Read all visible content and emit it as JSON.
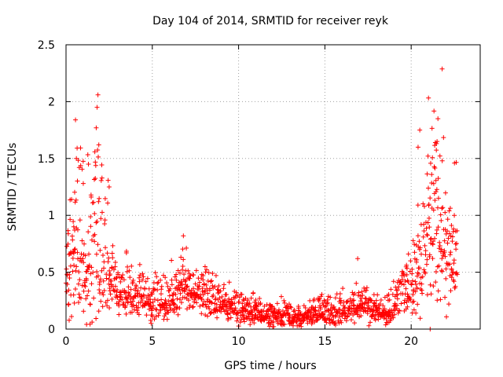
{
  "chart_data": {
    "type": "scatter",
    "title": "Day 104 of 2014, SRMTID for receiver reyk",
    "xlabel": "GPS time / hours",
    "ylabel": "SRMTID / TECUs",
    "xlim": [
      0,
      24
    ],
    "ylim": [
      0,
      2.5
    ],
    "xticks": [
      0,
      5,
      10,
      15,
      20
    ],
    "xtick_labels": [
      "0",
      "5",
      "10",
      "15",
      "20"
    ],
    "yticks": [
      0,
      0.5,
      1,
      1.5,
      2,
      2.5
    ],
    "ytick_labels": [
      "0",
      "0.5",
      "1",
      "1.5",
      "2",
      "2.5"
    ],
    "grid": true,
    "marker": "plus",
    "color": "#ff0000",
    "series": [
      {
        "name": "SRMTID",
        "envelope": {
          "x": [
            0.0,
            0.3,
            0.6,
            0.9,
            1.2,
            1.5,
            1.8,
            2.0,
            2.3,
            2.6,
            3.0,
            3.5,
            4.0,
            4.5,
            5.0,
            5.5,
            6.0,
            6.5,
            6.8,
            7.2,
            7.8,
            8.5,
            9.0,
            9.5,
            10.0,
            10.5,
            11.0,
            11.5,
            12.0,
            12.5,
            13.0,
            13.5,
            14.0,
            14.5,
            15.0,
            15.5,
            16.0,
            16.5,
            17.0,
            17.5,
            18.0,
            18.5,
            19.0,
            19.5,
            20.0,
            20.3,
            20.6,
            20.9,
            21.2,
            21.5,
            21.8,
            22.1,
            22.4,
            22.7
          ],
          "median": [
            0.5,
            0.65,
            0.75,
            0.7,
            0.55,
            0.55,
            0.75,
            0.8,
            0.55,
            0.45,
            0.35,
            0.32,
            0.3,
            0.28,
            0.22,
            0.22,
            0.25,
            0.3,
            0.45,
            0.35,
            0.3,
            0.25,
            0.22,
            0.2,
            0.17,
            0.15,
            0.14,
            0.12,
            0.11,
            0.11,
            0.1,
            0.1,
            0.12,
            0.13,
            0.15,
            0.16,
            0.16,
            0.18,
            0.2,
            0.18,
            0.15,
            0.12,
            0.2,
            0.3,
            0.35,
            0.45,
            0.55,
            0.7,
            0.85,
            0.8,
            0.8,
            0.7,
            0.65,
            0.55
          ],
          "spread": [
            0.3,
            0.45,
            0.55,
            0.5,
            0.4,
            0.4,
            0.6,
            0.6,
            0.4,
            0.25,
            0.18,
            0.15,
            0.15,
            0.14,
            0.12,
            0.12,
            0.12,
            0.15,
            0.18,
            0.15,
            0.13,
            0.12,
            0.1,
            0.1,
            0.08,
            0.08,
            0.08,
            0.07,
            0.07,
            0.07,
            0.07,
            0.07,
            0.07,
            0.08,
            0.08,
            0.09,
            0.09,
            0.09,
            0.1,
            0.09,
            0.08,
            0.08,
            0.1,
            0.13,
            0.18,
            0.25,
            0.35,
            0.45,
            0.55,
            0.55,
            0.5,
            0.45,
            0.4,
            0.3
          ]
        },
        "peaks": [
          {
            "x": 0.55,
            "y": 1.84
          },
          {
            "x": 0.6,
            "y": 1.5
          },
          {
            "x": 1.0,
            "y": 1.28
          },
          {
            "x": 1.3,
            "y": 1.45
          },
          {
            "x": 1.75,
            "y": 1.77
          },
          {
            "x": 1.85,
            "y": 2.06
          },
          {
            "x": 1.8,
            "y": 1.95
          },
          {
            "x": 1.9,
            "y": 1.62
          },
          {
            "x": 2.5,
            "y": 1.25
          },
          {
            "x": 3.5,
            "y": 0.67
          },
          {
            "x": 6.8,
            "y": 0.82
          },
          {
            "x": 16.9,
            "y": 0.62
          },
          {
            "x": 20.5,
            "y": 1.75
          },
          {
            "x": 20.4,
            "y": 1.6
          },
          {
            "x": 21.5,
            "y": 1.65
          },
          {
            "x": 21.55,
            "y": 1.85
          },
          {
            "x": 21.8,
            "y": 1.48
          },
          {
            "x": 22.5,
            "y": 1.0
          },
          {
            "x": 21.1,
            "y": 0.0
          }
        ]
      }
    ]
  }
}
